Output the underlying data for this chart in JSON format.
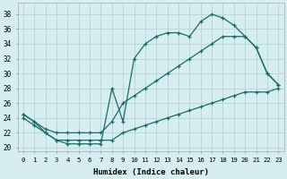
{
  "xlabel": "Humidex (Indice chaleur)",
  "bg_color": "#d6eef0",
  "grid_color": "#b8d8dc",
  "line_color": "#1a6b6b",
  "xlim": [
    -0.5,
    23.5
  ],
  "ylim": [
    19.5,
    39.5
  ],
  "xticks": [
    0,
    1,
    2,
    3,
    4,
    5,
    6,
    7,
    8,
    9,
    10,
    11,
    12,
    13,
    14,
    15,
    16,
    17,
    18,
    19,
    20,
    21,
    22,
    23
  ],
  "yticks": [
    20,
    22,
    24,
    26,
    28,
    30,
    32,
    34,
    36,
    38
  ],
  "line1_x": [
    0,
    1,
    2,
    3,
    4,
    5,
    6,
    7,
    8,
    9,
    10,
    11,
    12,
    13,
    14,
    15,
    16,
    17,
    18,
    19,
    20,
    21,
    22,
    23
  ],
  "line1_y": [
    24.5,
    23.5,
    22,
    21,
    20.5,
    20.5,
    20.5,
    20.5,
    28,
    23.5,
    32,
    34,
    35,
    35.5,
    35.5,
    35,
    37,
    38,
    37.5,
    36.5,
    35,
    33.5,
    30,
    28.5
  ],
  "line2_x": [
    0,
    1,
    2,
    3,
    4,
    5,
    6,
    7,
    8,
    9,
    10,
    11,
    12,
    13,
    14,
    15,
    16,
    17,
    18,
    19,
    20,
    21,
    22,
    23
  ],
  "line2_y": [
    24.5,
    23.5,
    22.5,
    22,
    22,
    22,
    22,
    22,
    23.5,
    26,
    27,
    28,
    29,
    30,
    31,
    32,
    33,
    34,
    35,
    35,
    35,
    33.5,
    30,
    28.5
  ],
  "line3_x": [
    0,
    1,
    2,
    3,
    4,
    5,
    6,
    7,
    8,
    9,
    10,
    11,
    12,
    13,
    14,
    15,
    16,
    17,
    18,
    19,
    20,
    21,
    22,
    23
  ],
  "line3_y": [
    24,
    23,
    22,
    21,
    21,
    21,
    21,
    21,
    21,
    22,
    22.5,
    23,
    23.5,
    24,
    24.5,
    25,
    25.5,
    26,
    26.5,
    27,
    27.5,
    27.5,
    27.5,
    28
  ]
}
